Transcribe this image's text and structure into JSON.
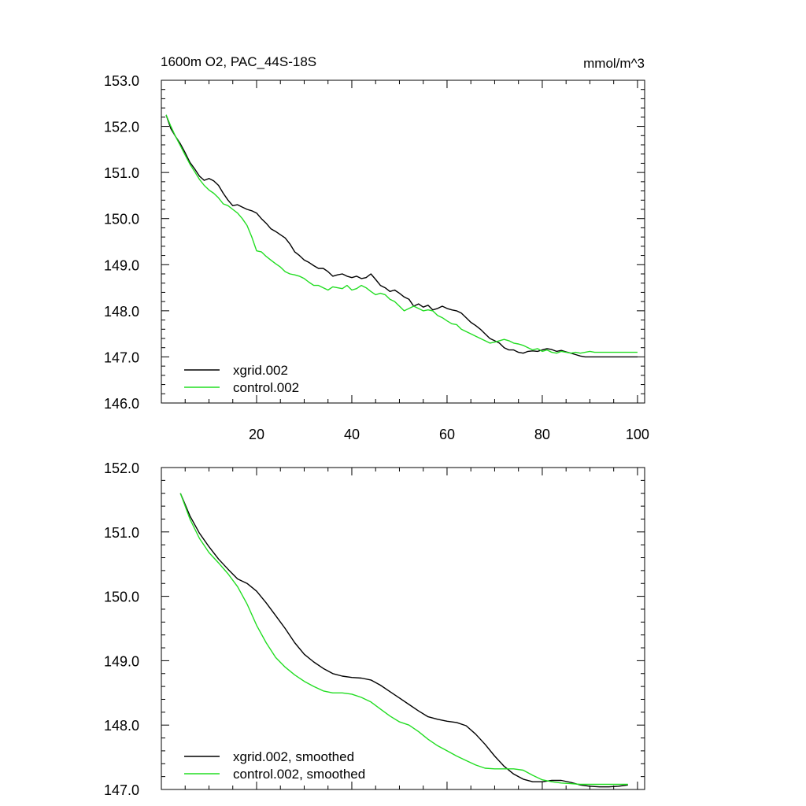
{
  "chart_data": [
    {
      "type": "line",
      "title": "1600m O2, PAC_44S-18S",
      "units": "mmol/m^3",
      "xlim": [
        0,
        101.5
      ],
      "ylim": [
        146.0,
        153.0
      ],
      "x_ticks": [
        20,
        40,
        60,
        80,
        100
      ],
      "x_tick_labels": [
        "20",
        "40",
        "60",
        "80",
        "100"
      ],
      "y_ticks": [
        146.0,
        147.0,
        148.0,
        149.0,
        150.0,
        151.0,
        152.0,
        153.0
      ],
      "y_tick_labels": [
        "146.0",
        "147.0",
        "148.0",
        "149.0",
        "150.0",
        "151.0",
        "152.0",
        "153.0"
      ],
      "legend_position": "bottom-left",
      "series": [
        {
          "name": "xgrid.002",
          "color": "#000000",
          "x": [
            1,
            2,
            3,
            4,
            5,
            6,
            7,
            8,
            9,
            10,
            11,
            12,
            13,
            14,
            15,
            16,
            17,
            18,
            19,
            20,
            21,
            22,
            23,
            24,
            25,
            26,
            27,
            28,
            29,
            30,
            31,
            32,
            33,
            34,
            35,
            36,
            37,
            38,
            39,
            40,
            41,
            42,
            43,
            44,
            45,
            46,
            47,
            48,
            49,
            50,
            51,
            52,
            53,
            54,
            55,
            56,
            57,
            58,
            59,
            60,
            61,
            62,
            63,
            64,
            65,
            66,
            67,
            68,
            69,
            70,
            71,
            72,
            73,
            74,
            75,
            76,
            77,
            78,
            79,
            80,
            81,
            82,
            83,
            84,
            85,
            86,
            87,
            88,
            89,
            90,
            91,
            92,
            93,
            94,
            95,
            96,
            97,
            98,
            99,
            100
          ],
          "values": [
            152.25,
            151.95,
            151.78,
            151.62,
            151.43,
            151.22,
            151.08,
            150.92,
            150.83,
            150.87,
            150.82,
            150.72,
            150.55,
            150.4,
            150.28,
            150.3,
            150.25,
            150.2,
            150.17,
            150.12,
            150.0,
            149.9,
            149.78,
            149.72,
            149.65,
            149.58,
            149.45,
            149.28,
            149.2,
            149.1,
            149.05,
            148.98,
            148.92,
            148.92,
            148.85,
            148.75,
            148.78,
            148.8,
            148.75,
            148.72,
            148.75,
            148.7,
            148.72,
            148.8,
            148.68,
            148.55,
            148.5,
            148.42,
            148.45,
            148.38,
            148.3,
            148.25,
            148.1,
            148.15,
            148.08,
            148.12,
            148.02,
            148.05,
            148.1,
            148.05,
            148.02,
            148.0,
            147.95,
            147.85,
            147.75,
            147.68,
            147.6,
            147.5,
            147.4,
            147.35,
            147.3,
            147.2,
            147.15,
            147.15,
            147.1,
            147.08,
            147.12,
            147.13,
            147.12,
            147.15,
            147.18,
            147.16,
            147.12,
            147.14,
            147.11,
            147.08,
            147.05,
            147.02,
            147.0,
            147.0,
            147.0,
            147.0,
            147.0,
            147.0,
            147.0,
            147.0,
            147.0,
            147.0,
            147.0,
            147.0
          ]
        },
        {
          "name": "control.002",
          "color": "#22dd22",
          "x": [
            1,
            2,
            3,
            4,
            5,
            6,
            7,
            8,
            9,
            10,
            11,
            12,
            13,
            14,
            15,
            16,
            17,
            18,
            19,
            20,
            21,
            22,
            23,
            24,
            25,
            26,
            27,
            28,
            29,
            30,
            31,
            32,
            33,
            34,
            35,
            36,
            37,
            38,
            39,
            40,
            41,
            42,
            43,
            44,
            45,
            46,
            47,
            48,
            49,
            50,
            51,
            52,
            53,
            54,
            55,
            56,
            57,
            58,
            59,
            60,
            61,
            62,
            63,
            64,
            65,
            66,
            67,
            68,
            69,
            70,
            71,
            72,
            73,
            74,
            75,
            76,
            77,
            78,
            79,
            80,
            81,
            82,
            83,
            84,
            85,
            86,
            87,
            88,
            89,
            90,
            91,
            92,
            93,
            94,
            95,
            96,
            97,
            98,
            99,
            100
          ],
          "values": [
            152.25,
            152.0,
            151.78,
            151.58,
            151.38,
            151.18,
            151.02,
            150.85,
            150.72,
            150.62,
            150.55,
            150.45,
            150.32,
            150.28,
            150.2,
            150.12,
            150.0,
            149.85,
            149.6,
            149.3,
            149.28,
            149.18,
            149.1,
            149.02,
            148.95,
            148.85,
            148.8,
            148.78,
            148.75,
            148.7,
            148.62,
            148.55,
            148.55,
            148.5,
            148.45,
            148.52,
            148.5,
            148.48,
            148.55,
            148.45,
            148.48,
            148.55,
            148.5,
            148.42,
            148.35,
            148.38,
            148.35,
            148.25,
            148.2,
            148.1,
            148.0,
            148.05,
            148.1,
            148.05,
            148.0,
            148.02,
            148.0,
            147.9,
            147.85,
            147.78,
            147.72,
            147.7,
            147.6,
            147.55,
            147.5,
            147.45,
            147.4,
            147.35,
            147.3,
            147.32,
            147.35,
            147.38,
            147.35,
            147.3,
            147.28,
            147.25,
            147.2,
            147.15,
            147.18,
            147.12,
            147.15,
            147.1,
            147.08,
            147.12,
            147.1,
            147.08,
            147.1,
            147.08,
            147.1,
            147.12,
            147.1,
            147.1,
            147.1,
            147.1,
            147.1,
            147.1,
            147.1,
            147.1,
            147.1,
            147.1
          ]
        }
      ]
    },
    {
      "type": "line",
      "title": "",
      "xlim": [
        0,
        101.5
      ],
      "ylim": [
        147.0,
        152.0
      ],
      "x_ticks": [
        20,
        40,
        60,
        80,
        100
      ],
      "y_ticks": [
        147.0,
        148.0,
        149.0,
        150.0,
        151.0,
        152.0
      ],
      "y_tick_labels": [
        "147.0",
        "148.0",
        "149.0",
        "150.0",
        "151.0",
        "152.0"
      ],
      "legend_position": "bottom-left",
      "series": [
        {
          "name": "xgrid.002, smoothed",
          "color": "#000000",
          "x": [
            4,
            6,
            8,
            10,
            12,
            14,
            16,
            18,
            20,
            22,
            24,
            26,
            28,
            30,
            32,
            34,
            36,
            38,
            40,
            42,
            44,
            46,
            48,
            50,
            52,
            54,
            56,
            58,
            60,
            62,
            64,
            66,
            68,
            70,
            72,
            74,
            76,
            78,
            80,
            82,
            84,
            86,
            88,
            90,
            92,
            94,
            96,
            98
          ],
          "values": [
            151.6,
            151.25,
            150.98,
            150.77,
            150.58,
            150.42,
            150.27,
            150.2,
            150.08,
            149.9,
            149.7,
            149.5,
            149.28,
            149.1,
            148.98,
            148.88,
            148.8,
            148.76,
            148.74,
            148.73,
            148.7,
            148.62,
            148.52,
            148.42,
            148.32,
            148.22,
            148.13,
            148.09,
            148.06,
            148.04,
            147.99,
            147.86,
            147.7,
            147.52,
            147.36,
            147.24,
            147.16,
            147.12,
            147.12,
            147.14,
            147.14,
            147.11,
            147.07,
            147.05,
            147.04,
            147.04,
            147.05,
            147.07
          ]
        },
        {
          "name": "control.002, smoothed",
          "color": "#22dd22",
          "x": [
            4,
            6,
            8,
            10,
            12,
            14,
            16,
            18,
            20,
            22,
            24,
            26,
            28,
            30,
            32,
            34,
            36,
            38,
            40,
            42,
            44,
            46,
            48,
            50,
            52,
            54,
            56,
            58,
            60,
            62,
            64,
            66,
            68,
            70,
            72,
            74,
            76,
            78,
            80,
            82,
            84,
            86,
            88,
            90,
            92,
            94,
            96,
            98
          ],
          "values": [
            151.6,
            151.2,
            150.9,
            150.68,
            150.52,
            150.35,
            150.15,
            149.88,
            149.55,
            149.28,
            149.05,
            148.9,
            148.78,
            148.68,
            148.6,
            148.53,
            148.5,
            148.5,
            148.48,
            148.43,
            148.36,
            148.25,
            148.14,
            148.05,
            148.0,
            147.9,
            147.78,
            147.68,
            147.6,
            147.52,
            147.45,
            147.38,
            147.33,
            147.32,
            147.32,
            147.32,
            147.3,
            147.22,
            147.15,
            147.12,
            147.1,
            147.09,
            147.08,
            147.08,
            147.08,
            147.08,
            147.08,
            147.08
          ]
        }
      ]
    }
  ]
}
